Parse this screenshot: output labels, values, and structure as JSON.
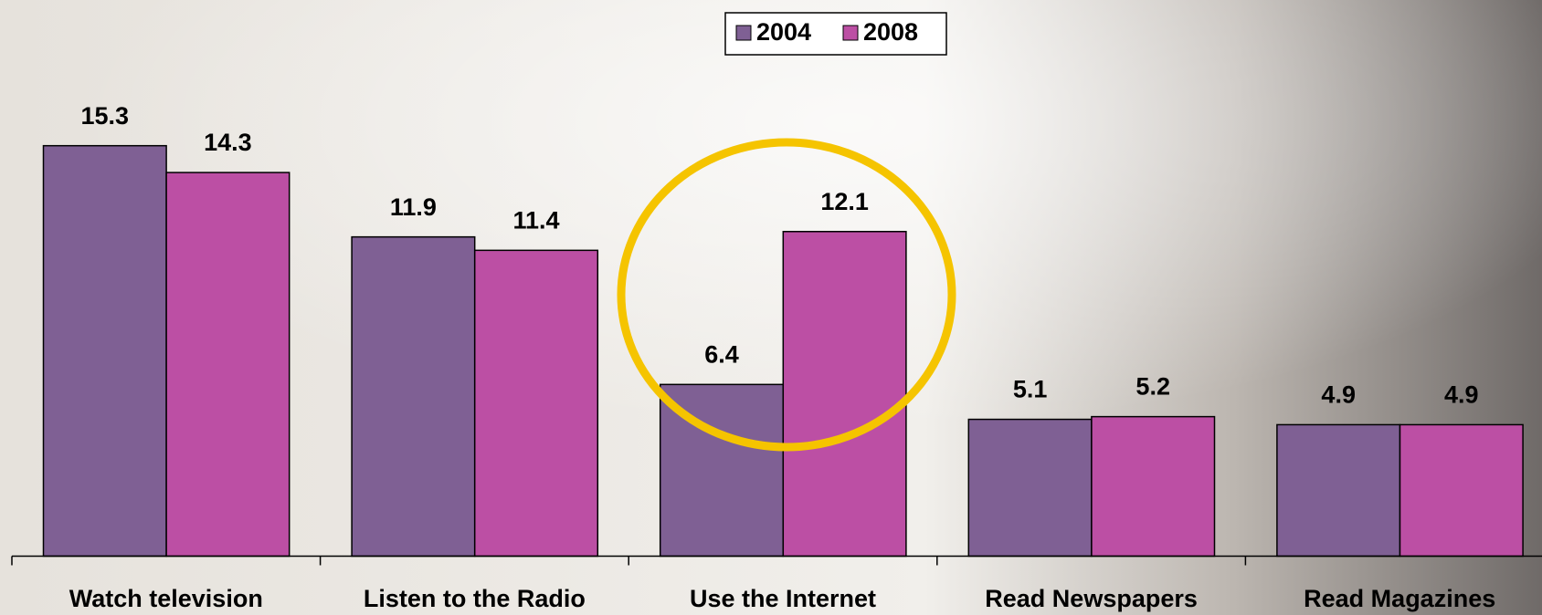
{
  "chart_data": {
    "type": "bar",
    "categories": [
      "Watch television",
      "Listen to the Radio",
      "Use the Internet",
      "Read Newspapers",
      "Read Magazines"
    ],
    "series": [
      {
        "name": "2004",
        "color": "#7f6094",
        "values": [
          15.3,
          11.9,
          6.4,
          5.1,
          4.9
        ]
      },
      {
        "name": "2008",
        "color": "#bc4fa4",
        "values": [
          14.3,
          11.4,
          12.1,
          5.2,
          4.9
        ]
      }
    ],
    "ylim": [
      0,
      20
    ]
  }
}
